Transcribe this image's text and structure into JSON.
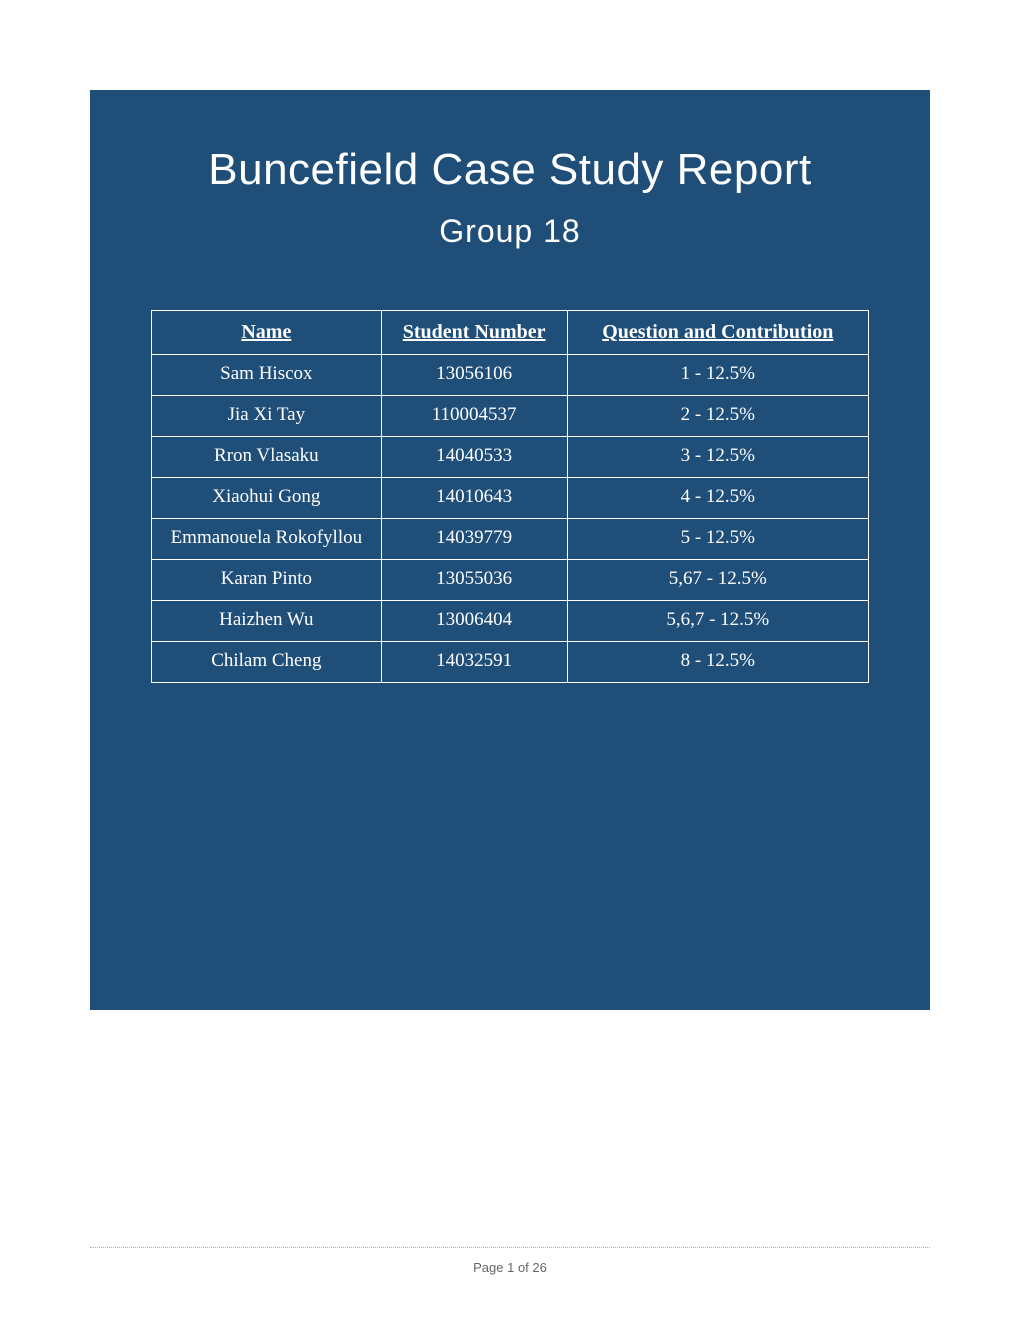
{
  "header": {
    "title": "Buncefield Case Study Report",
    "subtitle": "Group 18"
  },
  "table": {
    "columns": [
      "Name",
      "Student Number",
      "Question and Contribution"
    ],
    "rows": [
      [
        "Sam Hiscox",
        "13056106",
        "1 - 12.5%"
      ],
      [
        "Jia Xi Tay",
        "110004537",
        "2 - 12.5%"
      ],
      [
        "Rron Vlasaku",
        "14040533",
        "3 - 12.5%"
      ],
      [
        "Xiaohui Gong",
        "14010643",
        "4 - 12.5%"
      ],
      [
        "Emmanouela Rokofyllou",
        "14039779",
        "5 - 12.5%"
      ],
      [
        "Karan Pinto",
        "13055036",
        "5,67 - 12.5%"
      ],
      [
        "Haizhen Wu",
        "13006404",
        "5,6,7 - 12.5%"
      ],
      [
        "Chilam Cheng",
        "14032591",
        "8 - 12.5%"
      ]
    ]
  },
  "footer": {
    "page_label": "Page 1 of 26"
  },
  "style": {
    "panel_bg": "#1f4e79",
    "page_bg": "#ffffff",
    "text_color": "#ffffff",
    "title_fontsize": 44,
    "subtitle_fontsize": 32,
    "header_fontsize": 20,
    "cell_fontsize": 19,
    "footer_color": "#666666"
  }
}
